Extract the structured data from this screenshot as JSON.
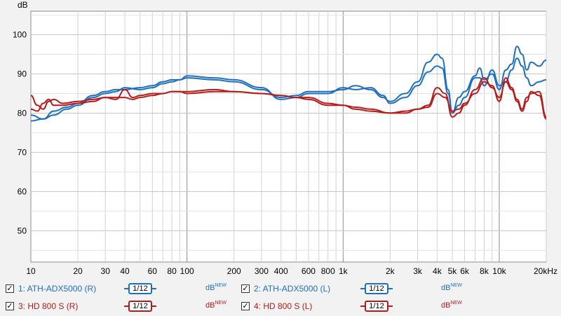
{
  "chart_data": {
    "type": "line",
    "ylabel": "dB",
    "x_scale": "log",
    "xlim": [
      10,
      20000
    ],
    "ylim": [
      42,
      106
    ],
    "yticks": [
      50,
      60,
      70,
      80,
      90,
      100
    ],
    "xticks": [
      {
        "v": 10,
        "label": "10"
      },
      {
        "v": 20,
        "label": "20"
      },
      {
        "v": 30,
        "label": "30"
      },
      {
        "v": 40,
        "label": "40"
      },
      {
        "v": 60,
        "label": "60"
      },
      {
        "v": 80,
        "label": "80"
      },
      {
        "v": 100,
        "label": "100"
      },
      {
        "v": 200,
        "label": "200"
      },
      {
        "v": 300,
        "label": "300"
      },
      {
        "v": 400,
        "label": "400"
      },
      {
        "v": 600,
        "label": "600"
      },
      {
        "v": 800,
        "label": "800"
      },
      {
        "v": 1000,
        "label": "1k"
      },
      {
        "v": 2000,
        "label": "2k"
      },
      {
        "v": 3000,
        "label": "3k"
      },
      {
        "v": 4000,
        "label": "4k"
      },
      {
        "v": 5000,
        "label": "5k"
      },
      {
        "v": 6000,
        "label": "6k"
      },
      {
        "v": 8000,
        "label": "8k"
      },
      {
        "v": 10000,
        "label": "10k"
      },
      {
        "v": 20000,
        "label": "20kHz"
      }
    ],
    "grid": true,
    "series": [
      {
        "name": "1: ATH-ADX5000 (R)",
        "color": "#1f6fbf",
        "points": [
          [
            10,
            79.5
          ],
          [
            12,
            78.5
          ],
          [
            14,
            80.5
          ],
          [
            17,
            81.5
          ],
          [
            20,
            82.5
          ],
          [
            25,
            84.5
          ],
          [
            30,
            85.5
          ],
          [
            35,
            86
          ],
          [
            40,
            86
          ],
          [
            50,
            86.5
          ],
          [
            60,
            87
          ],
          [
            70,
            88
          ],
          [
            80,
            88.5
          ],
          [
            90,
            88.5
          ],
          [
            100,
            89
          ],
          [
            150,
            88.5
          ],
          [
            200,
            88
          ],
          [
            300,
            86
          ],
          [
            400,
            84
          ],
          [
            500,
            84.5
          ],
          [
            600,
            85.5
          ],
          [
            800,
            85.5
          ],
          [
            1000,
            86
          ],
          [
            1200,
            87
          ],
          [
            1500,
            86
          ],
          [
            1800,
            84
          ],
          [
            2000,
            83
          ],
          [
            2500,
            85
          ],
          [
            3000,
            88
          ],
          [
            3500,
            93
          ],
          [
            4000,
            95
          ],
          [
            4300,
            94
          ],
          [
            4700,
            86
          ],
          [
            5000,
            80
          ],
          [
            5500,
            84
          ],
          [
            6000,
            85.5
          ],
          [
            7000,
            89.5
          ],
          [
            7500,
            91.5
          ],
          [
            8000,
            88.5
          ],
          [
            9000,
            90
          ],
          [
            10000,
            86
          ],
          [
            11000,
            91
          ],
          [
            12000,
            92.5
          ],
          [
            13000,
            97
          ],
          [
            14000,
            95
          ],
          [
            15000,
            91
          ],
          [
            16000,
            93
          ],
          [
            18000,
            92
          ],
          [
            20000,
            93.5
          ]
        ]
      },
      {
        "name": "2: ATH-ADX5000 (L)",
        "color": "#1f6fbf",
        "points": [
          [
            10,
            78
          ],
          [
            12,
            78.5
          ],
          [
            14,
            79.5
          ],
          [
            17,
            81
          ],
          [
            20,
            82
          ],
          [
            25,
            84
          ],
          [
            30,
            85
          ],
          [
            35,
            85.5
          ],
          [
            40,
            86.5
          ],
          [
            50,
            86
          ],
          [
            60,
            86.5
          ],
          [
            70,
            87.5
          ],
          [
            80,
            88
          ],
          [
            90,
            88.5
          ],
          [
            100,
            89.5
          ],
          [
            150,
            89
          ],
          [
            200,
            88.5
          ],
          [
            300,
            86.5
          ],
          [
            400,
            83.5
          ],
          [
            500,
            84
          ],
          [
            600,
            85
          ],
          [
            800,
            85
          ],
          [
            1000,
            86.5
          ],
          [
            1200,
            86
          ],
          [
            1500,
            86.5
          ],
          [
            1800,
            84.5
          ],
          [
            2000,
            82.5
          ],
          [
            2500,
            84
          ],
          [
            3000,
            87
          ],
          [
            3500,
            90.5
          ],
          [
            4000,
            92
          ],
          [
            4300,
            91.5
          ],
          [
            4700,
            85
          ],
          [
            5000,
            80
          ],
          [
            5500,
            82
          ],
          [
            6000,
            84
          ],
          [
            7000,
            89
          ],
          [
            7500,
            89
          ],
          [
            8000,
            87
          ],
          [
            9000,
            91
          ],
          [
            10000,
            87
          ],
          [
            11000,
            88
          ],
          [
            12000,
            91
          ],
          [
            13000,
            94
          ],
          [
            14000,
            92
          ],
          [
            15000,
            89
          ],
          [
            16000,
            87
          ],
          [
            18000,
            88
          ],
          [
            20000,
            88.5
          ]
        ]
      },
      {
        "name": "3: HD 800 S (R)",
        "color": "#b81b1b",
        "points": [
          [
            10,
            84.5
          ],
          [
            11,
            82
          ],
          [
            12,
            81
          ],
          [
            13,
            83
          ],
          [
            14,
            83.5
          ],
          [
            16,
            82.5
          ],
          [
            20,
            83
          ],
          [
            25,
            83.5
          ],
          [
            30,
            84
          ],
          [
            35,
            83.5
          ],
          [
            40,
            86
          ],
          [
            45,
            84
          ],
          [
            50,
            84.5
          ],
          [
            60,
            85
          ],
          [
            70,
            85
          ],
          [
            80,
            85.5
          ],
          [
            90,
            85.5
          ],
          [
            100,
            85.5
          ],
          [
            150,
            86
          ],
          [
            200,
            85.5
          ],
          [
            300,
            85
          ],
          [
            400,
            84.5
          ],
          [
            500,
            84
          ],
          [
            600,
            83.5
          ],
          [
            800,
            82
          ],
          [
            1000,
            82
          ],
          [
            1200,
            81
          ],
          [
            1500,
            80.5
          ],
          [
            2000,
            80
          ],
          [
            2500,
            80
          ],
          [
            3000,
            81
          ],
          [
            3500,
            82
          ],
          [
            4000,
            86.5
          ],
          [
            4500,
            85
          ],
          [
            5000,
            79
          ],
          [
            5500,
            80
          ],
          [
            6000,
            82
          ],
          [
            7000,
            86
          ],
          [
            8000,
            89
          ],
          [
            9000,
            86.5
          ],
          [
            10000,
            84
          ],
          [
            11000,
            88
          ],
          [
            12000,
            86
          ],
          [
            13000,
            83
          ],
          [
            14000,
            80.5
          ],
          [
            15000,
            83
          ],
          [
            16000,
            85.5
          ],
          [
            18000,
            84.5
          ],
          [
            20000,
            78.5
          ]
        ]
      },
      {
        "name": "4: HD 800 S (L)",
        "color": "#b81b1b",
        "points": [
          [
            10,
            81
          ],
          [
            11,
            80.5
          ],
          [
            12,
            82.5
          ],
          [
            13,
            83.5
          ],
          [
            14,
            82
          ],
          [
            16,
            82
          ],
          [
            20,
            82.5
          ],
          [
            25,
            83
          ],
          [
            30,
            84
          ],
          [
            35,
            84
          ],
          [
            40,
            84
          ],
          [
            45,
            83.5
          ],
          [
            50,
            84
          ],
          [
            60,
            84.5
          ],
          [
            70,
            85
          ],
          [
            80,
            85.5
          ],
          [
            90,
            85.5
          ],
          [
            100,
            85
          ],
          [
            150,
            85.5
          ],
          [
            200,
            85.5
          ],
          [
            300,
            85
          ],
          [
            400,
            84.5
          ],
          [
            500,
            84
          ],
          [
            600,
            84
          ],
          [
            800,
            82.5
          ],
          [
            1000,
            82
          ],
          [
            1200,
            81.5
          ],
          [
            1500,
            81
          ],
          [
            2000,
            80
          ],
          [
            2500,
            80.5
          ],
          [
            3000,
            81
          ],
          [
            3500,
            81.5
          ],
          [
            4000,
            85
          ],
          [
            4500,
            84
          ],
          [
            5000,
            80.5
          ],
          [
            5500,
            81
          ],
          [
            6000,
            82.5
          ],
          [
            7000,
            85
          ],
          [
            8000,
            88
          ],
          [
            9000,
            87
          ],
          [
            10000,
            83
          ],
          [
            11000,
            89
          ],
          [
            12000,
            86.5
          ],
          [
            13000,
            83.5
          ],
          [
            14000,
            81
          ],
          [
            15000,
            84
          ],
          [
            16000,
            85
          ],
          [
            18000,
            85.5
          ],
          [
            20000,
            79
          ]
        ]
      }
    ]
  },
  "legend": [
    {
      "label": "1: ATH-ADX5000 (R)",
      "color": "#1f6fbf",
      "smoothing": "1/12",
      "db": "dB",
      "badge": "NEW",
      "checked": "✓"
    },
    {
      "label": "2: ATH-ADX5000 (L)",
      "color": "#1f6fbf",
      "smoothing": "1/12",
      "db": "dB",
      "badge": "NEW",
      "checked": "✓"
    },
    {
      "label": "3: HD 800 S (R)",
      "color": "#b81b1b",
      "smoothing": "1/12",
      "db": "dB",
      "badge": "NEW",
      "checked": "✓"
    },
    {
      "label": "4: HD 800 S (L)",
      "color": "#b81b1b",
      "smoothing": "1/12",
      "db": "dB",
      "badge": "NEW",
      "checked": "✓"
    }
  ]
}
